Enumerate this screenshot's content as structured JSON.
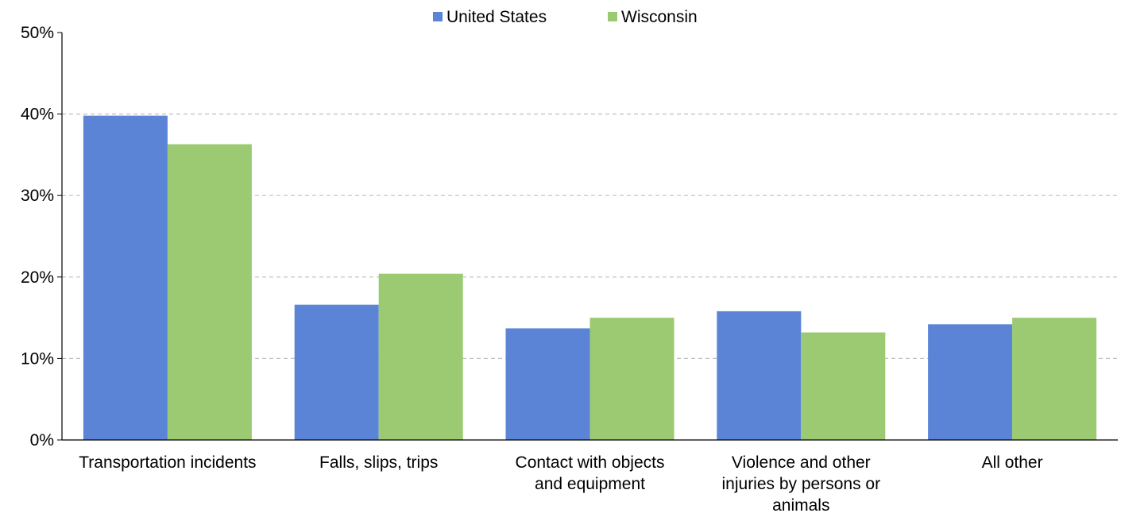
{
  "chart_data": {
    "type": "bar",
    "title": "",
    "xlabel": "",
    "ylabel": "",
    "categories": [
      [
        "Transportation incidents"
      ],
      [
        "Falls, slips, trips"
      ],
      [
        "Contact with objects",
        "and equipment"
      ],
      [
        "Violence and other",
        "injuries by persons or",
        "animals"
      ],
      [
        "All other"
      ]
    ],
    "series": [
      {
        "name": "United States",
        "color": "#5b84d6",
        "values": [
          39.8,
          16.6,
          13.7,
          15.8,
          14.2
        ]
      },
      {
        "name": "Wisconsin",
        "color": "#9bca73",
        "values": [
          36.3,
          20.4,
          15.0,
          13.2,
          15.0
        ]
      }
    ],
    "ylim": [
      0,
      50
    ],
    "yticks": [
      0,
      10,
      20,
      30,
      40,
      50
    ],
    "ytick_labels": [
      "0%",
      "10%",
      "20%",
      "30%",
      "40%",
      "50%"
    ],
    "grid": true,
    "legend_position": "top-center"
  }
}
